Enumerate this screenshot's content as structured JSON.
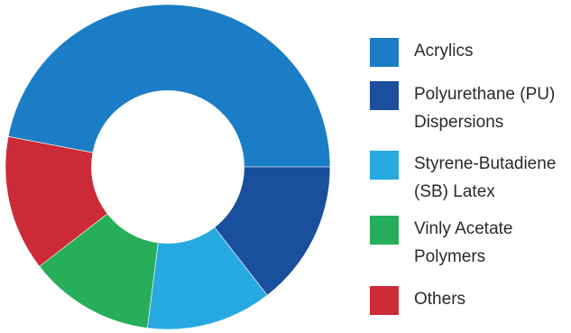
{
  "chart_data": {
    "type": "pie",
    "title": "",
    "series": [
      {
        "name": "",
        "labels": [
          "Acrylics",
          "Others",
          "Vinly Acetate Polymers",
          "Styrene-Butadiene (SB) Latex",
          "Polyurethane (PU) Dispersions"
        ],
        "values": [
          47.0,
          13.5,
          12.5,
          12.5,
          14.5
        ],
        "colors": [
          "#1a7dc5",
          "#cc2a36",
          "#27ae5a",
          "#26a9e0",
          "#1a4f9d"
        ]
      }
    ],
    "inner_radius_ratio": 0.47,
    "start_angle_deg": 0,
    "legend_position": "right",
    "grid": false
  },
  "legend": [
    {
      "label": "Acrylics",
      "color": "#1a7dc5"
    },
    {
      "label": "Polyurethane (PU)\nDispersions",
      "color": "#1a4f9d"
    },
    {
      "label": "Styrene-Butadiene\n(SB) Latex",
      "color": "#26a9e0"
    },
    {
      "label": "Vinly Acetate\nPolymers",
      "color": "#27ae5a"
    },
    {
      "label": "Others",
      "color": "#cc2a36"
    }
  ]
}
